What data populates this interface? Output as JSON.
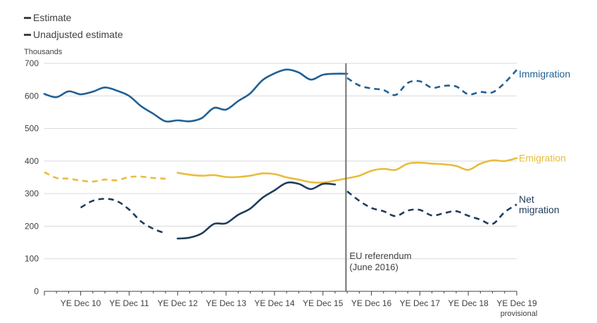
{
  "legend": {
    "estimate": "Estimate",
    "unadjusted": "Unadjusted estimate"
  },
  "y_unit": "Thousands",
  "annotation": {
    "line1": "EU referendum",
    "line2": "(June 2016)"
  },
  "colors": {
    "immigration": "#206095",
    "emigration": "#e8bd3c",
    "net": "#1f3c5b",
    "axis": "#414042",
    "grid": "#d9d9d9",
    "referendum": "#707070"
  },
  "chart_data": {
    "type": "line",
    "ylim": [
      0,
      700
    ],
    "yticks": [
      0,
      100,
      200,
      300,
      400,
      500,
      600,
      700
    ],
    "xlim": [
      0,
      39
    ],
    "x_ticks": [
      {
        "x": 3,
        "label": "YE Dec 10"
      },
      {
        "x": 7,
        "label": "YE Dec 11"
      },
      {
        "x": 11,
        "label": "YE Dec 12"
      },
      {
        "x": 15,
        "label": "YE Dec 13"
      },
      {
        "x": 19,
        "label": "YE Dec 14"
      },
      {
        "x": 23,
        "label": "YE Dec 15"
      },
      {
        "x": 27,
        "label": "YE Dec 16"
      },
      {
        "x": 31,
        "label": "YE Dec 17"
      },
      {
        "x": 35,
        "label": "YE Dec 18"
      },
      {
        "x": 39,
        "label": "YE Dec 19",
        "label2": "provisional"
      }
    ],
    "referendum_x": 24.9,
    "series": [
      {
        "name": "Immigration",
        "key": "immigration",
        "style": "solid",
        "label_lines": [
          "Immigration"
        ],
        "x": [
          0,
          1,
          2,
          3,
          4,
          5,
          6,
          7,
          8,
          9,
          10,
          11,
          12,
          13,
          14,
          15,
          16,
          17,
          18,
          19,
          20,
          21,
          22,
          23,
          24,
          25
        ],
        "values": [
          606,
          596,
          614,
          605,
          613,
          626,
          616,
          600,
          568,
          545,
          522,
          525,
          522,
          532,
          563,
          558,
          584,
          608,
          648,
          669,
          681,
          672,
          650,
          665,
          668,
          668
        ]
      },
      {
        "name": "Immigration",
        "key": "immigration",
        "style": "dashed",
        "x": [
          25,
          26,
          27,
          28,
          29,
          30,
          31,
          32,
          33,
          34,
          35,
          36,
          37,
          38,
          39
        ],
        "values": [
          655,
          632,
          623,
          618,
          603,
          640,
          645,
          625,
          631,
          629,
          605,
          612,
          611,
          640,
          680
        ]
      },
      {
        "name": "Emigration",
        "key": "emigration",
        "style": "dashed",
        "x": [
          0,
          1,
          2,
          3,
          4,
          5,
          6,
          7,
          8,
          9,
          10
        ],
        "values": [
          366,
          348,
          346,
          340,
          337,
          343,
          341,
          351,
          352,
          348,
          346
        ]
      },
      {
        "name": "Emigration",
        "key": "emigration",
        "style": "solid",
        "label_lines": [
          "Emigration"
        ],
        "x": [
          11,
          12,
          13,
          14,
          15,
          16,
          17,
          18,
          19,
          20,
          21,
          22,
          23,
          24,
          25,
          26,
          27,
          28,
          29,
          30,
          31,
          32,
          33,
          34,
          35,
          36,
          37,
          38,
          39
        ],
        "values": [
          364,
          358,
          355,
          357,
          351,
          351,
          355,
          362,
          360,
          350,
          343,
          335,
          334,
          340,
          347,
          355,
          370,
          376,
          373,
          392,
          395,
          392,
          390,
          385,
          373,
          392,
          402,
          400,
          409
        ]
      },
      {
        "name": "Net migration",
        "key": "net",
        "style": "dashed",
        "x": [
          3,
          4,
          5,
          6,
          7,
          8,
          9,
          10
        ],
        "values": [
          257,
          278,
          284,
          277,
          251,
          214,
          192,
          178
        ]
      },
      {
        "name": "Net migration",
        "key": "net",
        "style": "solid",
        "x": [
          11,
          12,
          13,
          14,
          15,
          16,
          17,
          18,
          19,
          20,
          21,
          22,
          23,
          24
        ],
        "values": [
          162,
          165,
          178,
          207,
          209,
          235,
          254,
          287,
          310,
          333,
          330,
          314,
          330,
          328
        ]
      },
      {
        "name": "Net migration",
        "key": "net",
        "style": "dashed",
        "label_lines": [
          "Net",
          "migration"
        ],
        "x": [
          25,
          26,
          27,
          28,
          29,
          30,
          31,
          32,
          33,
          34,
          35,
          36,
          37,
          38,
          39
        ],
        "values": [
          307,
          278,
          256,
          246,
          231,
          248,
          250,
          233,
          240,
          246,
          232,
          220,
          207,
          243,
          267
        ]
      }
    ]
  }
}
